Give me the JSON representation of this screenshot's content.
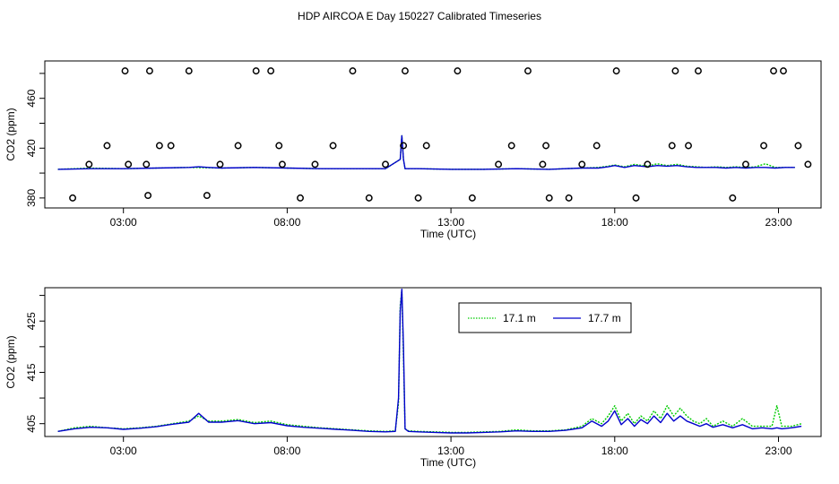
{
  "title": "HDP AIRCOA E  Day 150227  Calibrated Timeseries",
  "chart_data": [
    {
      "type": "scatter",
      "xlabel": "Time (UTC)",
      "ylabel": "CO2 (ppm)",
      "xlim": [
        0.6,
        24.3
      ],
      "ylim": [
        372,
        490
      ],
      "xticks": [
        3,
        8,
        13,
        18,
        23
      ],
      "xtick_labels": [
        "03:00",
        "08:00",
        "13:00",
        "18:00",
        "23:00"
      ],
      "yticks": [
        380,
        420,
        460
      ],
      "ytick_labels": [
        "380",
        "420",
        "460"
      ],
      "grid": false,
      "series": [
        {
          "name": "17.1 m",
          "color": "#00cc00",
          "style": "dotted",
          "x": [
            1.0,
            2.0,
            3.0,
            4.0,
            5.0,
            6.0,
            7.0,
            8.0,
            9.0,
            10.0,
            11.0,
            11.45,
            11.5,
            11.55,
            11.6,
            12.0,
            13.0,
            14.0,
            15.0,
            16.0,
            16.5,
            17.0,
            17.5,
            17.8,
            18.0,
            18.3,
            18.6,
            19.0,
            19.3,
            19.6,
            19.9,
            20.2,
            20.5,
            20.8,
            21.1,
            21.4,
            21.7,
            22.0,
            22.3,
            22.6,
            22.9,
            23.2,
            23.5
          ],
          "y": [
            403,
            404,
            403.5,
            404,
            404.5,
            404,
            404.5,
            404,
            403.5,
            403.5,
            403.5,
            411,
            430,
            411,
            403.5,
            403.5,
            403,
            403,
            403.5,
            403,
            403.5,
            404,
            404.5,
            405.5,
            406.5,
            405,
            407,
            405.5,
            407.5,
            406,
            407,
            405.5,
            405,
            404.5,
            405,
            404.5,
            405,
            404.5,
            405,
            407.5,
            404.5,
            404.5,
            404.5
          ]
        },
        {
          "name": "17.7 m",
          "color": "#0000cc",
          "style": "solid",
          "x": [
            1.0,
            2.0,
            3.0,
            4.0,
            5.0,
            5.3,
            5.6,
            6.0,
            7.0,
            8.0,
            9.0,
            10.0,
            11.0,
            11.45,
            11.5,
            11.55,
            11.6,
            12.0,
            13.0,
            14.0,
            15.0,
            16.0,
            16.5,
            17.0,
            17.5,
            17.8,
            18.0,
            18.3,
            18.6,
            19.0,
            19.3,
            19.6,
            19.9,
            20.2,
            20.5,
            20.8,
            21.1,
            21.4,
            21.7,
            22.0,
            22.3,
            22.6,
            22.9,
            23.2,
            23.5
          ],
          "y": [
            403,
            403.5,
            403.5,
            404,
            404.5,
            405,
            404.5,
            404,
            404.5,
            404,
            403.5,
            403.5,
            403.5,
            411,
            430,
            411,
            403.5,
            403.5,
            403,
            403,
            403.5,
            403,
            403.5,
            404,
            404,
            405,
            406,
            404.5,
            406,
            405,
            406,
            405.5,
            406,
            405,
            404.5,
            404.5,
            404.5,
            404,
            404.5,
            404,
            404.5,
            404.5,
            404,
            404.5,
            404.5
          ]
        },
        {
          "name": "",
          "color": "#000000",
          "style": "circles",
          "x": [
            1.45,
            1.95,
            2.5,
            3.05,
            3.15,
            3.7,
            3.75,
            3.8,
            4.1,
            4.45,
            5.0,
            5.55,
            5.95,
            6.5,
            7.05,
            7.5,
            7.75,
            7.85,
            8.4,
            8.85,
            9.4,
            10.0,
            10.5,
            11.0,
            11.55,
            11.6,
            12.0,
            12.25,
            13.2,
            13.65,
            14.45,
            14.85,
            15.35,
            15.8,
            15.9,
            16.0,
            16.6,
            17.0,
            17.45,
            18.05,
            18.65,
            19.0,
            19.75,
            19.85,
            20.25,
            20.55,
            21.6,
            22.0,
            22.55,
            22.85,
            23.15,
            23.6,
            23.9
          ],
          "y": [
            380,
            407,
            422,
            482,
            407,
            407,
            382,
            482,
            422,
            422,
            482,
            382,
            407,
            422,
            482,
            482,
            422,
            407,
            380,
            407,
            422,
            482,
            380,
            407,
            422,
            482,
            380,
            422,
            482,
            380,
            407,
            422,
            482,
            407,
            422,
            380,
            380,
            407,
            422,
            482,
            380,
            407,
            422,
            482,
            422,
            482,
            380,
            407,
            422,
            482,
            482,
            422,
            407
          ]
        }
      ]
    },
    {
      "type": "line",
      "xlabel": "Time (UTC)",
      "ylabel": "CO2 (ppm)",
      "xlim": [
        0.6,
        24.3
      ],
      "ylim": [
        402.5,
        431.5
      ],
      "xticks": [
        3,
        8,
        13,
        18,
        23
      ],
      "xtick_labels": [
        "03:00",
        "08:00",
        "13:00",
        "18:00",
        "23:00"
      ],
      "yticks": [
        405,
        415,
        425
      ],
      "ytick_labels": [
        "405",
        "415",
        "425"
      ],
      "grid": false,
      "legend": "top-center",
      "series": [
        {
          "name": "17.1 m",
          "color": "#00cc00",
          "style": "dotted",
          "x": [
            1.0,
            1.5,
            2.0,
            2.5,
            3.0,
            3.5,
            4.0,
            4.5,
            5.0,
            5.3,
            5.6,
            6.0,
            6.5,
            7.0,
            7.5,
            8.0,
            8.5,
            9.0,
            9.5,
            10.0,
            10.5,
            11.0,
            11.3,
            11.4,
            11.45,
            11.5,
            11.55,
            11.6,
            11.7,
            12.0,
            12.5,
            13.0,
            13.5,
            14.0,
            14.5,
            15.0,
            15.5,
            16.0,
            16.5,
            17.0,
            17.3,
            17.6,
            17.8,
            18.0,
            18.2,
            18.4,
            18.6,
            18.8,
            19.0,
            19.2,
            19.4,
            19.6,
            19.8,
            20.0,
            20.2,
            20.4,
            20.6,
            20.8,
            21.0,
            21.3,
            21.6,
            21.9,
            22.2,
            22.5,
            22.8,
            22.95,
            23.1,
            23.4,
            23.7
          ],
          "y": [
            403.5,
            404.2,
            404.5,
            404.2,
            404,
            404.2,
            404.5,
            405,
            405.5,
            406.5,
            405.5,
            405.5,
            405.8,
            405.2,
            405.5,
            404.8,
            404.5,
            404.2,
            404,
            403.8,
            403.6,
            403.5,
            403.6,
            409,
            428,
            431,
            418,
            404,
            403.6,
            403.5,
            403.4,
            403.3,
            403.3,
            403.4,
            403.5,
            403.8,
            403.6,
            403.6,
            403.8,
            404.5,
            406,
            405,
            406.5,
            408.5,
            405.5,
            407,
            405,
            406.5,
            405.5,
            407.5,
            406,
            408.5,
            406.5,
            408,
            406.5,
            405.5,
            405,
            406,
            404.5,
            405.5,
            404.5,
            406,
            404.5,
            404.5,
            404.5,
            408.5,
            404.5,
            404.5,
            405
          ]
        },
        {
          "name": "17.7 m",
          "color": "#0000cc",
          "style": "solid",
          "x": [
            1.0,
            1.5,
            2.0,
            2.5,
            3.0,
            3.5,
            4.0,
            4.5,
            5.0,
            5.3,
            5.6,
            6.0,
            6.5,
            7.0,
            7.5,
            8.0,
            8.5,
            9.0,
            9.5,
            10.0,
            10.5,
            11.0,
            11.3,
            11.4,
            11.45,
            11.5,
            11.55,
            11.6,
            11.7,
            12.0,
            12.5,
            13.0,
            13.5,
            14.0,
            14.5,
            15.0,
            15.5,
            16.0,
            16.5,
            17.0,
            17.3,
            17.6,
            17.8,
            18.0,
            18.2,
            18.4,
            18.6,
            18.8,
            19.0,
            19.2,
            19.4,
            19.6,
            19.8,
            20.0,
            20.2,
            20.4,
            20.6,
            20.8,
            21.0,
            21.3,
            21.6,
            21.9,
            22.2,
            22.5,
            22.8,
            22.95,
            23.1,
            23.4,
            23.7
          ],
          "y": [
            403.5,
            404,
            404.3,
            404.2,
            403.9,
            404.1,
            404.4,
            404.9,
            405.3,
            407,
            405.3,
            405.3,
            405.6,
            405,
            405.2,
            404.6,
            404.3,
            404.1,
            403.9,
            403.7,
            403.5,
            403.4,
            403.5,
            410,
            427,
            431.2,
            420,
            404,
            403.5,
            403.4,
            403.3,
            403.2,
            403.2,
            403.3,
            403.4,
            403.6,
            403.5,
            403.5,
            403.7,
            404.2,
            405.5,
            404.5,
            405.5,
            407.5,
            404.8,
            406,
            404.5,
            405.8,
            405,
            406.5,
            405.2,
            407,
            405.5,
            406.5,
            405.5,
            405,
            404.5,
            405,
            404.3,
            404.8,
            404.2,
            404.8,
            404,
            404.2,
            404,
            404.2,
            404,
            404.2,
            404.5
          ]
        }
      ]
    }
  ]
}
